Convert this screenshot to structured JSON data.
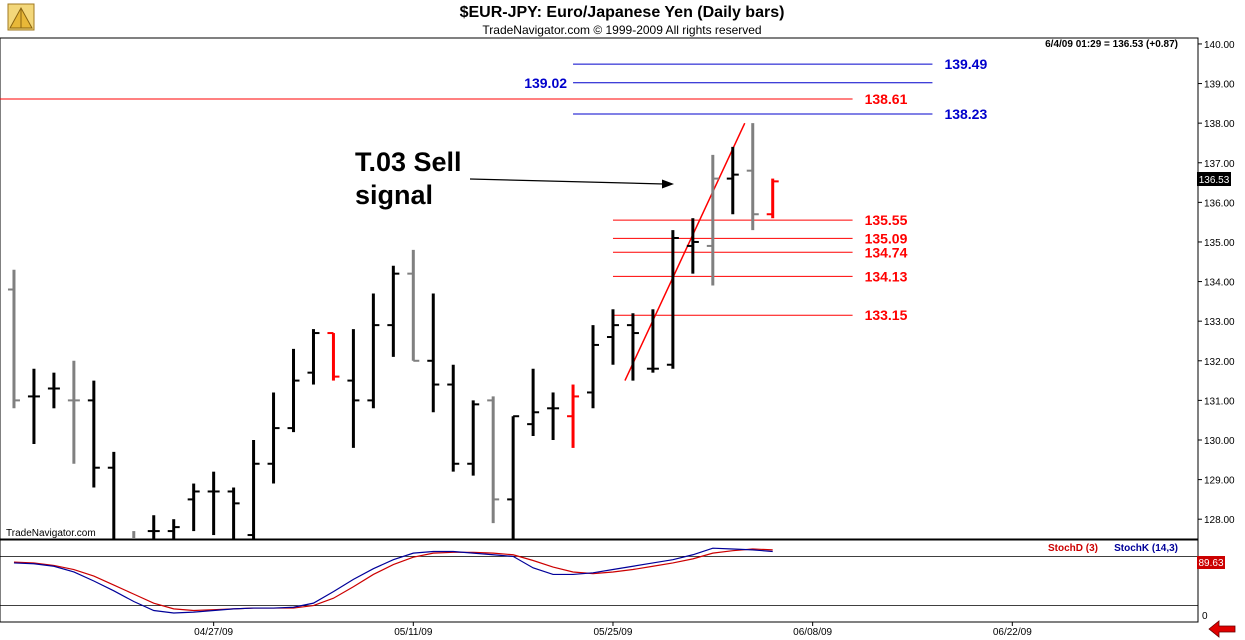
{
  "header": {
    "title": "$EUR-JPY:  Euro/Japanese Yen  (Daily bars)",
    "subtitle": "TradeNavigator.com © 1999-2009 All rights reserved"
  },
  "info_line": "6/4/09 01:29 = 136.53 (+0.87)",
  "watermark": "TradeNavigator.com",
  "last_price": "136.53",
  "stoch_value": "89.63",
  "stoch_legend": {
    "d_label": "StochD (3)",
    "k_label": "StochK (14,3)"
  },
  "annotation": {
    "line1": "T.03 Sell",
    "line2": "signal"
  },
  "colors": {
    "up": "#000000",
    "down": "#808080",
    "signal": "#ff0000",
    "blue_level": "#0000cc",
    "red_level": "#ff0000",
    "stoch_k": "#000099",
    "stoch_d": "#cc0000"
  },
  "icons": [
    "trade-navigator-logo-icon",
    "scroll-left-arrow-icon"
  ],
  "chart_data": {
    "type": "ohlc",
    "title": "$EUR-JPY:  Euro/Japanese Yen  (Daily bars)",
    "y_ticks": [
      128.0,
      129.0,
      130.0,
      131.0,
      132.0,
      133.0,
      134.0,
      135.0,
      136.0,
      137.0,
      138.0,
      139.0,
      140.0
    ],
    "y_tick_labels": [
      "128.00",
      "129.00",
      "130.00",
      "131.00",
      "132.00",
      "133.00",
      "134.00",
      "135.00",
      "136.00",
      "137.00",
      "138.00",
      "139.00",
      "140.00"
    ],
    "ylim": [
      127.5,
      140.15
    ],
    "x_labels": [
      {
        "label": "04/27/09",
        "bar": 10
      },
      {
        "label": "05/11/09",
        "bar": 20
      },
      {
        "label": "05/25/09",
        "bar": 30
      },
      {
        "label": "06/08/09",
        "bar": 40
      },
      {
        "label": "06/22/09",
        "bar": 50
      }
    ],
    "x_range_bars": [
      -0.7,
      59.3
    ],
    "bars": [
      {
        "o": 133.8,
        "h": 134.3,
        "l": 130.8,
        "c": 131.0,
        "color": "down"
      },
      {
        "o": 131.1,
        "h": 131.8,
        "l": 129.9,
        "c": 131.1,
        "color": "up"
      },
      {
        "o": 131.3,
        "h": 131.7,
        "l": 130.8,
        "c": 131.3,
        "color": "up"
      },
      {
        "o": 131.0,
        "h": 132.0,
        "l": 129.4,
        "c": 131.0,
        "color": "down"
      },
      {
        "o": 131.0,
        "h": 131.5,
        "l": 128.8,
        "c": 129.3,
        "color": "up"
      },
      {
        "o": 129.3,
        "h": 129.7,
        "l": 127.2,
        "c": 127.3,
        "color": "up"
      },
      {
        "o": 127.5,
        "h": 127.7,
        "l": 126.8,
        "c": 127.5,
        "color": "down"
      },
      {
        "o": 127.7,
        "h": 128.1,
        "l": 127.4,
        "c": 127.7,
        "color": "up"
      },
      {
        "o": 127.7,
        "h": 128.0,
        "l": 127.4,
        "c": 127.8,
        "color": "up"
      },
      {
        "o": 128.5,
        "h": 128.9,
        "l": 127.7,
        "c": 128.7,
        "color": "up"
      },
      {
        "o": 128.7,
        "h": 129.2,
        "l": 127.6,
        "c": 128.7,
        "color": "up"
      },
      {
        "o": 128.7,
        "h": 128.8,
        "l": 127.2,
        "c": 128.4,
        "color": "up"
      },
      {
        "o": 127.6,
        "h": 130.0,
        "l": 127.0,
        "c": 129.4,
        "color": "up"
      },
      {
        "o": 129.4,
        "h": 131.2,
        "l": 128.9,
        "c": 130.3,
        "color": "up"
      },
      {
        "o": 130.3,
        "h": 132.3,
        "l": 130.2,
        "c": 131.5,
        "color": "up"
      },
      {
        "o": 131.7,
        "h": 132.8,
        "l": 131.4,
        "c": 132.7,
        "color": "up"
      },
      {
        "o": 132.7,
        "h": 132.7,
        "l": 131.5,
        "c": 131.6,
        "color": "signal"
      },
      {
        "o": 131.5,
        "h": 132.8,
        "l": 129.8,
        "c": 131.0,
        "color": "up"
      },
      {
        "o": 131.0,
        "h": 133.7,
        "l": 130.8,
        "c": 132.9,
        "color": "up"
      },
      {
        "o": 132.9,
        "h": 134.4,
        "l": 132.1,
        "c": 134.2,
        "color": "up"
      },
      {
        "o": 134.2,
        "h": 134.8,
        "l": 132.0,
        "c": 132.0,
        "color": "down"
      },
      {
        "o": 132.0,
        "h": 133.7,
        "l": 130.7,
        "c": 131.4,
        "color": "up"
      },
      {
        "o": 131.4,
        "h": 131.9,
        "l": 129.2,
        "c": 129.4,
        "color": "up"
      },
      {
        "o": 129.4,
        "h": 131.0,
        "l": 129.1,
        "c": 130.9,
        "color": "up"
      },
      {
        "o": 131.0,
        "h": 131.1,
        "l": 127.9,
        "c": 128.5,
        "color": "down"
      },
      {
        "o": 128.5,
        "h": 130.6,
        "l": 126.8,
        "c": 130.6,
        "color": "up"
      },
      {
        "o": 130.4,
        "h": 131.8,
        "l": 130.1,
        "c": 130.7,
        "color": "up"
      },
      {
        "o": 130.8,
        "h": 131.2,
        "l": 130.0,
        "c": 130.8,
        "color": "up"
      },
      {
        "o": 130.6,
        "h": 131.4,
        "l": 129.8,
        "c": 131.1,
        "color": "signal"
      },
      {
        "o": 131.2,
        "h": 132.9,
        "l": 130.8,
        "c": 132.4,
        "color": "up"
      },
      {
        "o": 132.6,
        "h": 133.3,
        "l": 131.9,
        "c": 132.9,
        "color": "up"
      },
      {
        "o": 132.9,
        "h": 133.2,
        "l": 131.5,
        "c": 132.7,
        "color": "up"
      },
      {
        "o": 131.8,
        "h": 133.3,
        "l": 131.7,
        "c": 131.8,
        "color": "up"
      },
      {
        "o": 131.9,
        "h": 135.3,
        "l": 131.8,
        "c": 135.1,
        "color": "up"
      },
      {
        "o": 134.9,
        "h": 135.6,
        "l": 134.2,
        "c": 135.0,
        "color": "up"
      },
      {
        "o": 134.9,
        "h": 137.2,
        "l": 133.9,
        "c": 136.6,
        "color": "down"
      },
      {
        "o": 136.6,
        "h": 137.4,
        "l": 135.7,
        "c": 136.7,
        "color": "up"
      },
      {
        "o": 136.8,
        "h": 138.0,
        "l": 135.3,
        "c": 135.7,
        "color": "down"
      },
      {
        "o": 135.7,
        "h": 136.6,
        "l": 135.6,
        "c": 136.53,
        "color": "signal"
      }
    ],
    "horizontal_levels": [
      {
        "value": 139.49,
        "label": "139.49",
        "color": "blue",
        "from_bar": 28,
        "to_bar": 46,
        "label_side": "right"
      },
      {
        "value": 139.02,
        "label": "139.02",
        "color": "blue",
        "from_bar": 28,
        "to_bar": 46,
        "label_side": "left"
      },
      {
        "value": 138.61,
        "label": "138.61",
        "color": "red",
        "from_bar": -0.7,
        "to_bar": 42,
        "label_side": "right"
      },
      {
        "value": 138.23,
        "label": "138.23",
        "color": "blue",
        "from_bar": 28,
        "to_bar": 46,
        "label_side": "right"
      },
      {
        "value": 135.55,
        "label": "135.55",
        "color": "red",
        "from_bar": 30,
        "to_bar": 42,
        "label_side": "right"
      },
      {
        "value": 135.09,
        "label": "135.09",
        "color": "red",
        "from_bar": 30,
        "to_bar": 42,
        "label_side": "right"
      },
      {
        "value": 134.74,
        "label": "134.74",
        "color": "red",
        "from_bar": 30,
        "to_bar": 42,
        "label_side": "right"
      },
      {
        "value": 134.13,
        "label": "134.13",
        "color": "red",
        "from_bar": 30,
        "to_bar": 42,
        "label_side": "right"
      },
      {
        "value": 133.15,
        "label": "133.15",
        "color": "red",
        "from_bar": 30,
        "to_bar": 42,
        "label_side": "right"
      }
    ],
    "trendline": {
      "from": {
        "bar": 30.6,
        "price": 131.5
      },
      "to": {
        "bar": 36.6,
        "price": 138.0
      },
      "color": "red"
    },
    "stochastic": {
      "ylim": [
        0,
        100
      ],
      "y_ticks": [
        0
      ],
      "y_tick_labels": [
        "0"
      ],
      "reference_lines": [
        20,
        80
      ],
      "stoch_k": [
        72,
        71,
        68,
        61,
        50,
        38,
        25,
        14,
        11,
        12,
        14,
        16,
        17,
        17,
        18,
        23,
        37,
        52,
        65,
        76,
        84,
        86,
        86,
        84,
        82,
        80,
        66,
        58,
        58,
        60,
        64,
        68,
        72,
        76,
        82,
        90,
        89,
        88,
        86
      ],
      "stoch_d": [
        73,
        72,
        69,
        64,
        56,
        45,
        34,
        23,
        16,
        14,
        15,
        16,
        17,
        17,
        17,
        20,
        29,
        43,
        58,
        70,
        79,
        84,
        85,
        85,
        84,
        82,
        75,
        67,
        61,
        59,
        61,
        64,
        68,
        72,
        77,
        84,
        87,
        89,
        88
      ]
    }
  }
}
